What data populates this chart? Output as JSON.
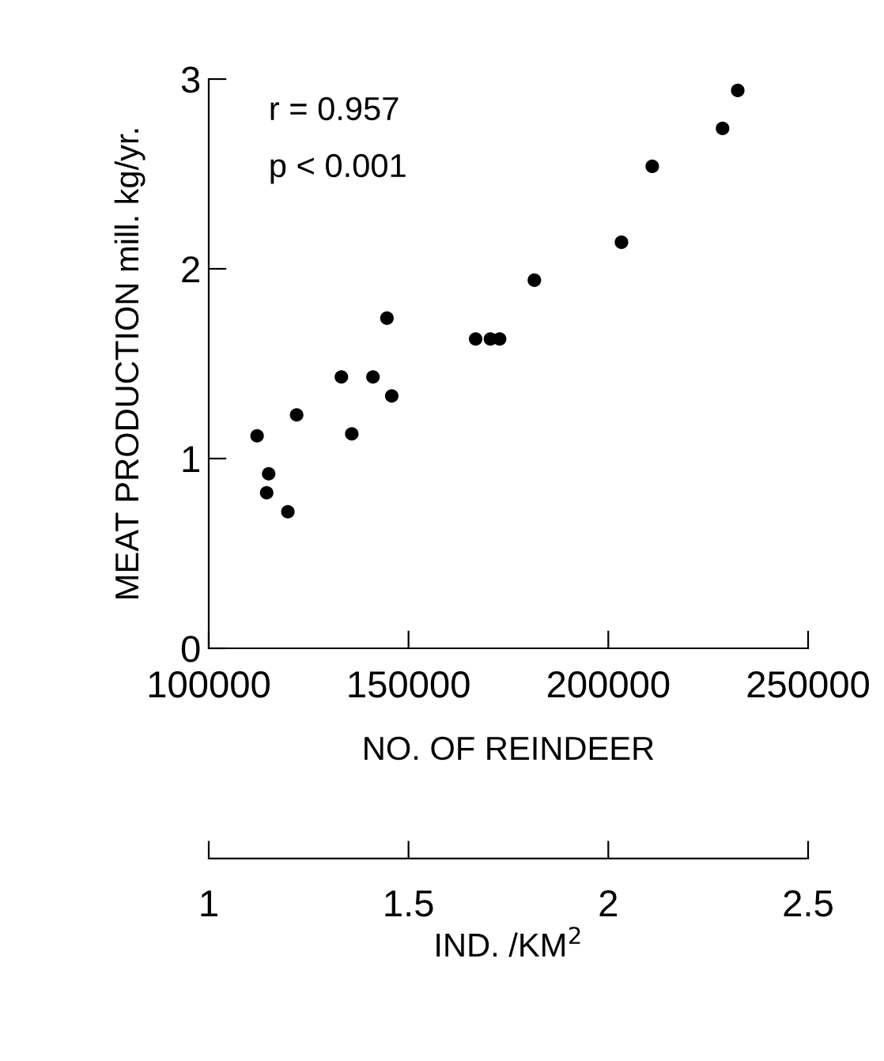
{
  "chart_data": {
    "type": "scatter",
    "xlabel": "NO. OF REINDEER",
    "ylabel": "MEAT PRODUCTION mill. kg/yr.",
    "x2label": "IND. /KM$^{2}$",
    "annotations": [
      "r = 0.957",
      "p < 0.001"
    ],
    "series": [
      {
        "color": "#000000",
        "x": [
          112100,
          115000,
          114500,
          119800,
          122000,
          133200,
          135800,
          141100,
          144600,
          145800,
          166800,
          170500,
          172800,
          181500,
          203300,
          211000,
          228600,
          232400
        ],
        "values": [
          1.12,
          0.92,
          0.82,
          0.72,
          1.23,
          1.43,
          1.13,
          1.43,
          1.74,
          1.33,
          1.63,
          1.63,
          1.63,
          1.94,
          2.14,
          2.54,
          2.74,
          2.94
        ]
      }
    ],
    "marker": "circle",
    "xlim": [
      100000,
      250000
    ],
    "xticks": [
      100000,
      150000,
      200000,
      250000
    ],
    "ylim": [
      0,
      3
    ],
    "yticks": [
      0,
      1,
      2,
      3
    ],
    "x2lim": [
      1,
      2.5
    ],
    "x2ticks": [
      1,
      1.5,
      2,
      2.5
    ],
    "grid": false,
    "legend": false
  }
}
